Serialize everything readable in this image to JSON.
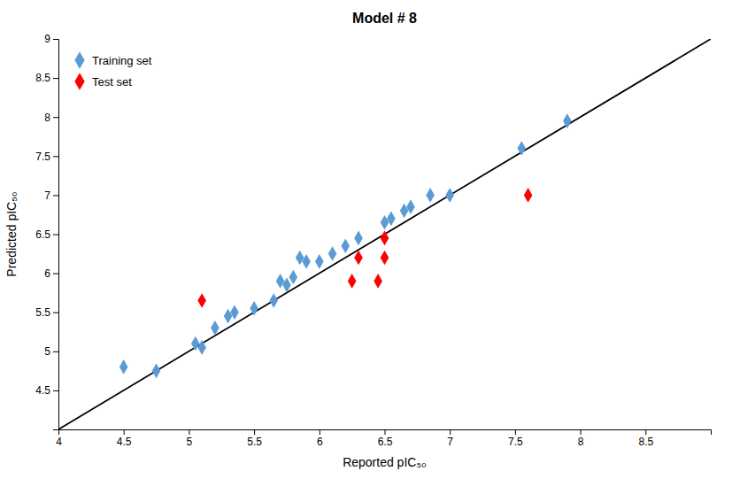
{
  "chart_data": {
    "type": "scatter",
    "title": "Model # 8",
    "x_label": "Reported pIC₅₀",
    "y_label": "Predicted pIC₅₀",
    "xlim": [
      4,
      9
    ],
    "ylim": [
      4,
      9
    ],
    "xticks": [
      4,
      4.5,
      5,
      5.5,
      6,
      6.5,
      7,
      7.5,
      8,
      8.5
    ],
    "yticks": [
      4.5,
      5,
      5.5,
      6,
      6.5,
      7,
      7.5,
      8,
      8.5,
      9
    ],
    "grid": false,
    "legend": "upper-left",
    "series": [
      {
        "name": "Training set",
        "type": "scatter",
        "marker": "diamond",
        "color": "#5b9bd5",
        "x": [
          4.5,
          4.75,
          5.05,
          5.1,
          5.2,
          5.3,
          5.35,
          5.5,
          5.65,
          5.7,
          5.75,
          5.8,
          5.85,
          5.9,
          6.0,
          6.1,
          6.2,
          6.3,
          6.5,
          6.55,
          6.65,
          6.7,
          6.85,
          7.0,
          7.55,
          7.9
        ],
        "values": [
          4.8,
          4.75,
          5.1,
          5.05,
          5.3,
          5.45,
          5.5,
          5.55,
          5.65,
          5.9,
          5.85,
          5.95,
          6.2,
          6.15,
          6.15,
          6.25,
          6.35,
          6.45,
          6.65,
          6.7,
          6.8,
          6.85,
          7.0,
          7.0,
          7.6,
          7.95
        ]
      },
      {
        "name": "Test set",
        "type": "scatter",
        "marker": "diamond",
        "color": "#ff0000",
        "x": [
          5.1,
          6.25,
          6.3,
          6.45,
          6.5,
          6.5,
          7.6
        ],
        "values": [
          5.65,
          5.9,
          6.2,
          5.9,
          6.2,
          6.45,
          7.0
        ]
      },
      {
        "type": "line",
        "line_style": "solid",
        "color": "#000000",
        "x": [
          4,
          9
        ],
        "values": [
          4,
          9
        ]
      }
    ]
  }
}
